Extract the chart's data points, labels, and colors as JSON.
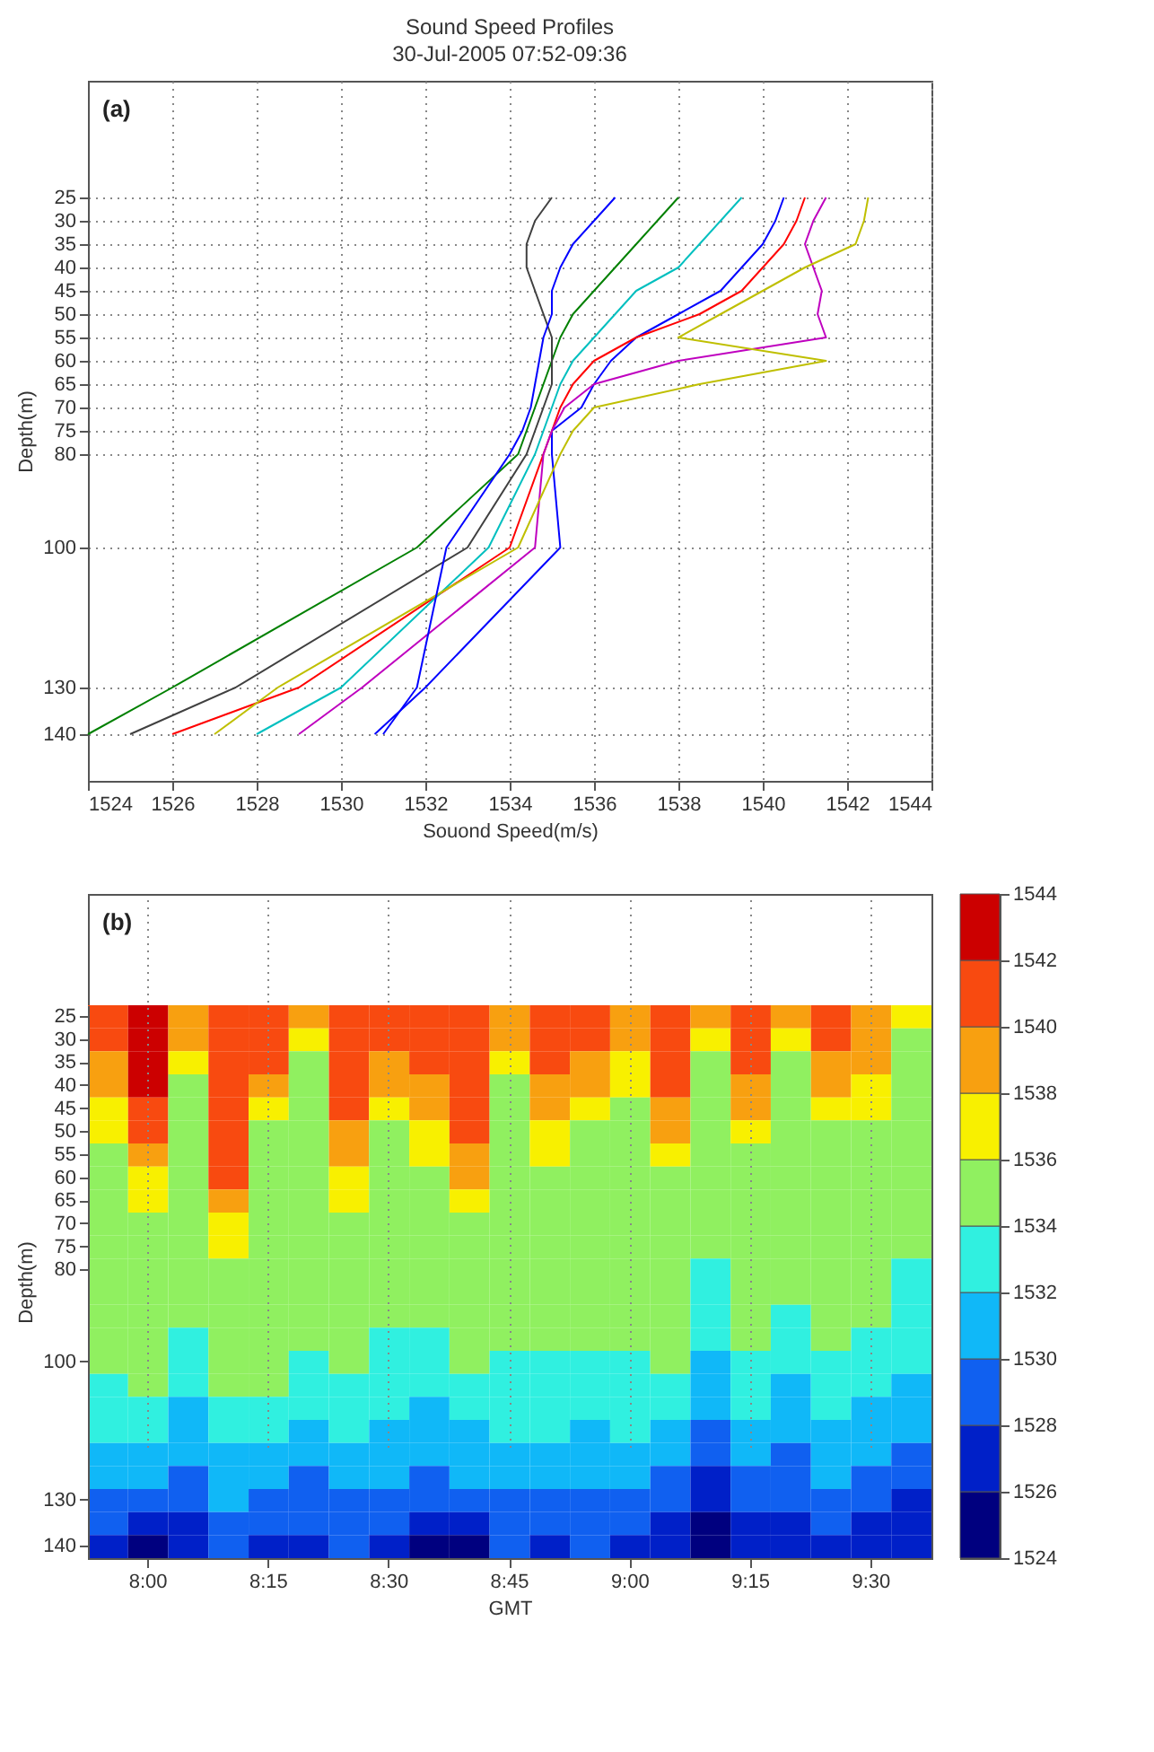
{
  "chart_data": [
    {
      "type": "line",
      "title": "Sound Speed Profiles",
      "subtitle": "30-Jul-2005 07:52-09:36",
      "xlabel": "Souond Speed(m/s)",
      "ylabel": "Depth(m)",
      "annotations": [
        "(a)"
      ],
      "xlim": [
        1524,
        1544
      ],
      "xticks": [
        1524,
        1526,
        1528,
        1530,
        1532,
        1534,
        1536,
        1538,
        1540,
        1542,
        1544
      ],
      "ylim": [
        150,
        0
      ],
      "yticks": [
        25,
        30,
        35,
        40,
        45,
        50,
        55,
        60,
        65,
        70,
        75,
        80,
        100,
        130,
        140
      ],
      "grid": true,
      "line_style": "solid",
      "series": [
        {
          "color": "#0000ff",
          "x": [
            1540.5,
            1540.3,
            1540,
            1539.5,
            1539,
            1538,
            1537,
            1536.4,
            1536,
            1535.7,
            1535,
            1535,
            1535.2,
            1532,
            1530.8
          ],
          "values": [
            25,
            30,
            35,
            40,
            45,
            50,
            55,
            60,
            65,
            70,
            75,
            80,
            100,
            130,
            140
          ]
        },
        {
          "color": "#008000",
          "x": [
            1538,
            1537.5,
            1537,
            1536.5,
            1536,
            1535.5,
            1535.2,
            1535,
            1534.8,
            1534.6,
            1534.4,
            1534.2,
            1531.8,
            1526,
            1524
          ],
          "values": [
            25,
            30,
            35,
            40,
            45,
            50,
            55,
            60,
            65,
            70,
            75,
            80,
            100,
            130,
            140
          ]
        },
        {
          "color": "#ff0000",
          "x": [
            1541,
            1540.8,
            1540.5,
            1540,
            1539.5,
            1538.5,
            1537,
            1536,
            1535.5,
            1535.2,
            1535,
            1534.8,
            1534,
            1529,
            1526
          ],
          "values": [
            25,
            30,
            35,
            40,
            45,
            50,
            55,
            60,
            65,
            70,
            75,
            80,
            100,
            130,
            140
          ]
        },
        {
          "color": "#00bfbf",
          "x": [
            1539.5,
            1539,
            1538.5,
            1538,
            1537,
            1536.5,
            1536,
            1535.5,
            1535.2,
            1535,
            1534.8,
            1534.6,
            1533.5,
            1530,
            1528
          ],
          "values": [
            25,
            30,
            35,
            40,
            45,
            50,
            55,
            60,
            65,
            70,
            75,
            80,
            100,
            130,
            140
          ]
        },
        {
          "color": "#bf00bf",
          "x": [
            1541.5,
            1541.2,
            1541,
            1541.2,
            1541.4,
            1541.3,
            1541.5,
            1538,
            1536,
            1535.3,
            1535,
            1534.8,
            1534.6,
            1530.5,
            1529
          ],
          "values": [
            25,
            30,
            35,
            40,
            45,
            50,
            55,
            60,
            65,
            70,
            75,
            80,
            100,
            130,
            140
          ]
        },
        {
          "color": "#bfbf00",
          "x": [
            1542.5,
            1542.4,
            1542.2,
            1541,
            1540,
            1539,
            1538,
            1541.5,
            1538.5,
            1536,
            1535.5,
            1535.2,
            1534.2,
            1528.5,
            1527
          ],
          "values": [
            25,
            30,
            35,
            40,
            45,
            50,
            55,
            60,
            65,
            70,
            75,
            80,
            100,
            130,
            140
          ]
        },
        {
          "color": "#404040",
          "x": [
            1535,
            1534.6,
            1534.4,
            1534.4,
            1534.6,
            1534.8,
            1535,
            1535,
            1535,
            1534.8,
            1534.6,
            1534.4,
            1533,
            1527.5,
            1525
          ],
          "values": [
            25,
            30,
            35,
            40,
            45,
            50,
            55,
            60,
            65,
            70,
            75,
            80,
            100,
            130,
            140
          ]
        },
        {
          "color": "#0000ff",
          "x": [
            1536.5,
            1536,
            1535.5,
            1535.2,
            1535,
            1535,
            1534.8,
            1534.7,
            1534.6,
            1534.5,
            1534.3,
            1534,
            1532.5,
            1531.8,
            1531
          ],
          "values": [
            25,
            30,
            35,
            40,
            45,
            50,
            55,
            60,
            65,
            70,
            75,
            80,
            100,
            130,
            140
          ]
        }
      ]
    },
    {
      "type": "heatmap",
      "xlabel": "GMT",
      "ylabel": "Depth(m)",
      "annotations": [
        "(b)"
      ],
      "grid": "x",
      "categories": [
        null,
        "8:00",
        null,
        null,
        "8:15",
        null,
        null,
        "8:30",
        null,
        null,
        "8:45",
        null,
        null,
        "9:00",
        null,
        null,
        "9:15",
        null,
        null,
        "9:30",
        null
      ],
      "y_categories": [
        "25",
        "30",
        "35",
        "40",
        "45",
        "50",
        "55",
        "60",
        "65",
        "70",
        "75",
        "80",
        null,
        null,
        null,
        "100",
        null,
        null,
        null,
        null,
        null,
        "130",
        null,
        "140"
      ],
      "clim": [
        1524,
        1544
      ],
      "cticks": [
        1524,
        1526,
        1528,
        1530,
        1532,
        1534,
        1536,
        1538,
        1540,
        1542,
        1544
      ],
      "colors": [
        "#00007f",
        "#0020c8",
        "#1060f0",
        "#10b8f8",
        "#30f0e0",
        "#90f060",
        "#f8f000",
        "#f8a010",
        "#f84a10",
        "#cc0000"
      ],
      "cells": [
        [
          1541,
          1543,
          1539,
          1541,
          1541,
          1539,
          1541,
          1541,
          1541,
          1541,
          1539,
          1541,
          1541,
          1539,
          1541,
          1539,
          1541,
          1539,
          1541,
          1539,
          1537
        ],
        [
          1541,
          1543,
          1539,
          1541,
          1541,
          1537,
          1541,
          1541,
          1541,
          1541,
          1539,
          1541,
          1541,
          1539,
          1541,
          1537,
          1541,
          1537,
          1541,
          1539,
          1535
        ],
        [
          1539,
          1543,
          1537,
          1541,
          1541,
          1535,
          1541,
          1539,
          1541,
          1541,
          1537,
          1541,
          1539,
          1537,
          1541,
          1535,
          1541,
          1535,
          1539,
          1539,
          1535
        ],
        [
          1539,
          1543,
          1535,
          1541,
          1539,
          1535,
          1541,
          1539,
          1539,
          1541,
          1535,
          1539,
          1539,
          1537,
          1541,
          1535,
          1539,
          1535,
          1539,
          1537,
          1535
        ],
        [
          1537,
          1541,
          1535,
          1541,
          1537,
          1535,
          1541,
          1537,
          1539,
          1541,
          1535,
          1539,
          1537,
          1535,
          1539,
          1535,
          1539,
          1535,
          1537,
          1537,
          1535
        ],
        [
          1537,
          1541,
          1535,
          1541,
          1535,
          1535,
          1539,
          1535,
          1537,
          1541,
          1535,
          1537,
          1535,
          1535,
          1539,
          1535,
          1537,
          1535,
          1535,
          1535,
          1535
        ],
        [
          1535,
          1539,
          1535,
          1541,
          1535,
          1535,
          1539,
          1535,
          1537,
          1539,
          1535,
          1537,
          1535,
          1535,
          1537,
          1535,
          1535,
          1535,
          1535,
          1535,
          1535
        ],
        [
          1535,
          1537,
          1535,
          1541,
          1535,
          1535,
          1537,
          1535,
          1535,
          1539,
          1535,
          1535,
          1535,
          1535,
          1535,
          1535,
          1535,
          1535,
          1535,
          1535,
          1535
        ],
        [
          1535,
          1537,
          1535,
          1539,
          1535,
          1535,
          1537,
          1535,
          1535,
          1537,
          1535,
          1535,
          1535,
          1535,
          1535,
          1535,
          1535,
          1535,
          1535,
          1535,
          1535
        ],
        [
          1535,
          1535,
          1535,
          1537,
          1535,
          1535,
          1535,
          1535,
          1535,
          1535,
          1535,
          1535,
          1535,
          1535,
          1535,
          1535,
          1535,
          1535,
          1535,
          1535,
          1535
        ],
        [
          1535,
          1535,
          1535,
          1537,
          1535,
          1535,
          1535,
          1535,
          1535,
          1535,
          1535,
          1535,
          1535,
          1535,
          1535,
          1535,
          1535,
          1535,
          1535,
          1535,
          1535
        ],
        [
          1535,
          1535,
          1535,
          1535,
          1535,
          1535,
          1535,
          1535,
          1535,
          1535,
          1535,
          1535,
          1535,
          1535,
          1535,
          1533,
          1535,
          1535,
          1535,
          1535,
          1533
        ],
        [
          1535,
          1535,
          1535,
          1535,
          1535,
          1535,
          1535,
          1535,
          1535,
          1535,
          1535,
          1535,
          1535,
          1535,
          1535,
          1533,
          1535,
          1535,
          1535,
          1535,
          1533
        ],
        [
          1535,
          1535,
          1535,
          1535,
          1535,
          1535,
          1535,
          1535,
          1535,
          1535,
          1535,
          1535,
          1535,
          1535,
          1535,
          1533,
          1535,
          1533,
          1535,
          1535,
          1533
        ],
        [
          1535,
          1535,
          1533,
          1535,
          1535,
          1535,
          1535,
          1533,
          1533,
          1535,
          1535,
          1535,
          1535,
          1535,
          1535,
          1533,
          1535,
          1533,
          1535,
          1533,
          1533
        ],
        [
          1535,
          1535,
          1533,
          1535,
          1535,
          1533,
          1535,
          1533,
          1533,
          1535,
          1533,
          1533,
          1533,
          1533,
          1535,
          1531,
          1533,
          1533,
          1533,
          1533,
          1533
        ],
        [
          1533,
          1535,
          1533,
          1535,
          1535,
          1533,
          1533,
          1533,
          1533,
          1533,
          1533,
          1533,
          1533,
          1533,
          1533,
          1531,
          1533,
          1531,
          1533,
          1533,
          1531
        ],
        [
          1533,
          1533,
          1531,
          1533,
          1533,
          1533,
          1533,
          1533,
          1531,
          1533,
          1533,
          1533,
          1533,
          1533,
          1533,
          1531,
          1533,
          1531,
          1533,
          1531,
          1531
        ],
        [
          1533,
          1533,
          1531,
          1533,
          1533,
          1531,
          1533,
          1531,
          1531,
          1531,
          1533,
          1533,
          1531,
          1533,
          1531,
          1529,
          1531,
          1531,
          1531,
          1531,
          1531
        ],
        [
          1531,
          1531,
          1531,
          1531,
          1531,
          1531,
          1531,
          1531,
          1531,
          1531,
          1531,
          1531,
          1531,
          1531,
          1531,
          1529,
          1531,
          1529,
          1531,
          1531,
          1529
        ],
        [
          1531,
          1531,
          1529,
          1531,
          1531,
          1529,
          1531,
          1531,
          1529,
          1531,
          1531,
          1531,
          1531,
          1531,
          1529,
          1527,
          1529,
          1529,
          1531,
          1529,
          1529
        ],
        [
          1529,
          1529,
          1529,
          1531,
          1529,
          1529,
          1529,
          1529,
          1529,
          1529,
          1529,
          1529,
          1529,
          1529,
          1529,
          1527,
          1529,
          1529,
          1529,
          1529,
          1527
        ],
        [
          1529,
          1527,
          1527,
          1529,
          1529,
          1529,
          1529,
          1529,
          1527,
          1527,
          1529,
          1529,
          1529,
          1529,
          1527,
          1525,
          1527,
          1527,
          1529,
          1527,
          1527
        ],
        [
          1527,
          1525,
          1527,
          1529,
          1527,
          1527,
          1529,
          1527,
          1525,
          1525,
          1529,
          1527,
          1529,
          1527,
          1527,
          1525,
          1527,
          1527,
          1527,
          1527,
          1527
        ]
      ]
    }
  ]
}
